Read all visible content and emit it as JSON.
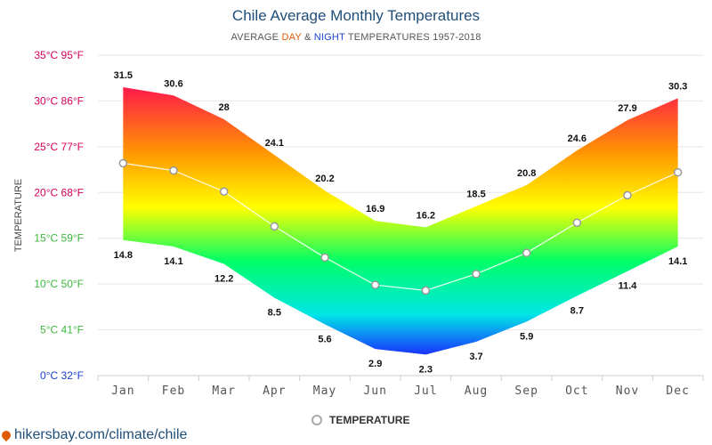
{
  "title": "Chile Average Monthly Temperatures",
  "subtitle": {
    "prefix": "AVERAGE ",
    "day": "DAY",
    "amp": " & ",
    "night": "NIGHT",
    "suffix": " TEMPERATURES 1957-2018"
  },
  "source": "hikersbay.com/climate/chile",
  "chart_data": {
    "type": "area",
    "ylabel": "TEMPERATURE",
    "ylim": [
      0,
      35
    ],
    "categories": [
      "Jan",
      "Feb",
      "Mar",
      "Apr",
      "May",
      "Jun",
      "Jul",
      "Aug",
      "Sep",
      "Oct",
      "Nov",
      "Dec"
    ],
    "y_ticks": [
      {
        "value": 0,
        "label": "0°C 32°F",
        "color": "#1a3fd1"
      },
      {
        "value": 5,
        "label": "5°C 41°F",
        "color": "#3db83d"
      },
      {
        "value": 10,
        "label": "10°C 50°F",
        "color": "#3db83d"
      },
      {
        "value": 15,
        "label": "15°C 59°F",
        "color": "#3db83d"
      },
      {
        "value": 20,
        "label": "20°C 68°F",
        "color": "#d6005a"
      },
      {
        "value": 25,
        "label": "25°C 77°F",
        "color": "#d6005a"
      },
      {
        "value": 30,
        "label": "30°C 86°F",
        "color": "#d6005a"
      },
      {
        "value": 35,
        "label": "35°C 95°F",
        "color": "#d6005a"
      }
    ],
    "day": [
      31.5,
      30.6,
      28,
      24.1,
      20.2,
      16.9,
      16.2,
      18.5,
      20.8,
      24.6,
      27.9,
      30.3
    ],
    "night": [
      14.8,
      14.1,
      12.2,
      8.5,
      5.6,
      2.9,
      2.3,
      3.7,
      5.9,
      8.7,
      11.4,
      14.1
    ],
    "series": [
      {
        "name": "TEMPERATURE",
        "values": [
          23.2,
          22.4,
          20.1,
          16.3,
          12.9,
          9.9,
          9.3,
          11.1,
          13.4,
          16.7,
          19.7,
          22.2
        ]
      }
    ],
    "gradient_colors": {
      "hot": "#ff1a4b",
      "warm": "#ff9900",
      "mild": "#ffff00",
      "cool": "#00ff66",
      "cold": "#00e6e6",
      "freezing": "#1a33ff"
    },
    "grid": true,
    "legend": "bottom-center"
  }
}
